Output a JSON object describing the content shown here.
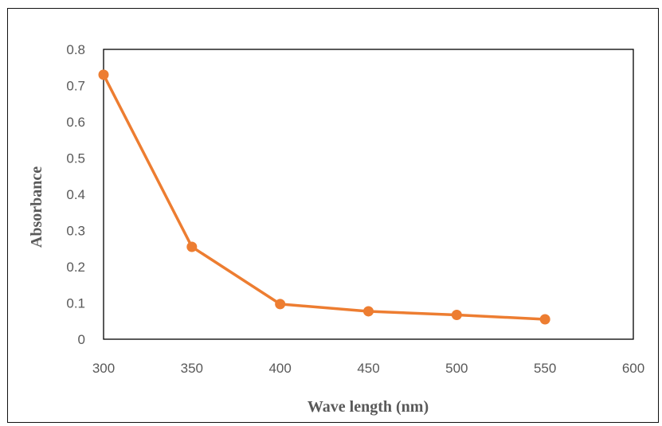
{
  "chart_data": {
    "type": "line",
    "title": "",
    "xlabel": "Wave length (nm)",
    "ylabel": "Absorbance",
    "xlim": [
      300,
      600
    ],
    "ylim": [
      0,
      0.8
    ],
    "x_ticks": [
      "300",
      "350",
      "400",
      "450",
      "500",
      "550",
      "600"
    ],
    "y_ticks": [
      "0",
      "0.1",
      "0.2",
      "0.3",
      "0.4",
      "0.5",
      "0.6",
      "0.7",
      "0.8"
    ],
    "grid": false,
    "legend": "none",
    "series": [
      {
        "x": [
          300,
          350,
          400,
          450,
          500,
          550
        ],
        "y": [
          0.73,
          0.255,
          0.097,
          0.077,
          0.067,
          0.055
        ],
        "color": "#ED7D31"
      }
    ]
  }
}
